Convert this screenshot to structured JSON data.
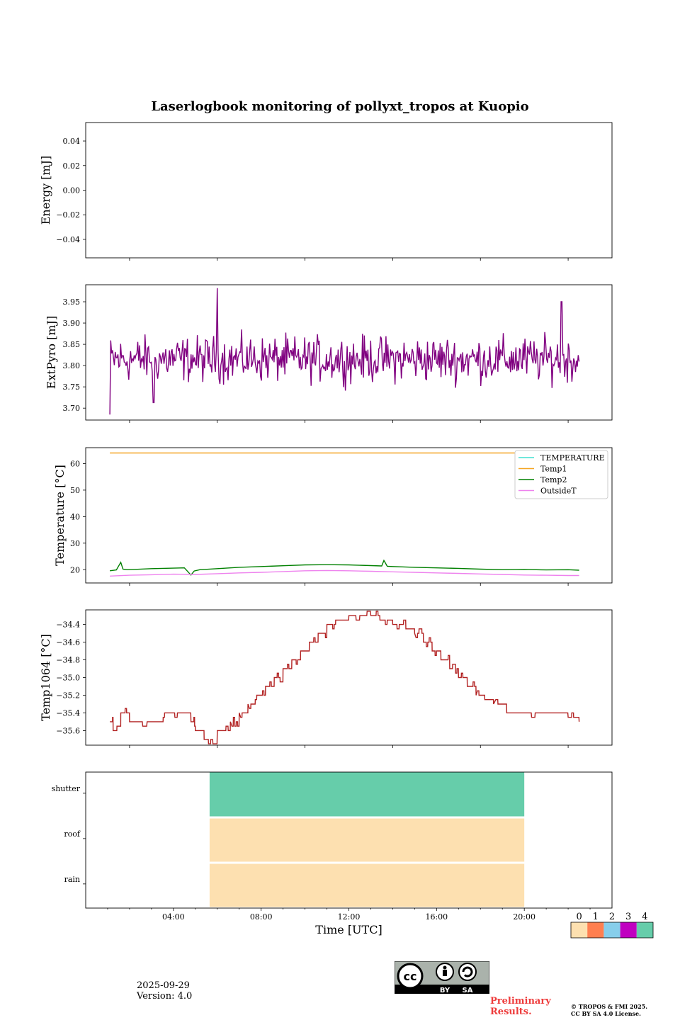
{
  "chart_data": {
    "title": "Laserlogbook monitoring of pollyxt_tropos at Kuopio",
    "xlabel": "Time [UTC]",
    "xlim": [
      0,
      24.0
    ],
    "shared_x_ticks": [
      2,
      6,
      10,
      14,
      18,
      22
    ],
    "panels": [
      {
        "type": "line",
        "ylabel": "Energy [mJ]",
        "ylim": [
          -0.055,
          0.055
        ],
        "yticks": [
          -0.04,
          -0.02,
          0.0,
          0.02,
          0.04
        ],
        "ytick_labels": [
          "−0.04",
          "−0.02",
          "0.00",
          "0.02",
          "0.04"
        ],
        "series": []
      },
      {
        "type": "line",
        "ylabel": "ExtPyro [mJ]",
        "ylim": [
          3.672,
          3.99
        ],
        "yticks": [
          3.7,
          3.75,
          3.8,
          3.85,
          3.9,
          3.95
        ],
        "ytick_labels": [
          "3.70",
          "3.75",
          "3.80",
          "3.85",
          "3.90",
          "3.95"
        ],
        "series": [
          {
            "name": "ExtPyro",
            "color": "#800080",
            "x_start": 1.1,
            "x_end": 22.5,
            "mean": 3.815,
            "noise": 0.04,
            "spikes": [
              [
                1.1,
                3.685
              ],
              [
                6.0,
                3.982
              ],
              [
                21.7,
                3.95
              ],
              [
                3.1,
                3.713
              ]
            ]
          }
        ]
      },
      {
        "type": "line",
        "ylabel": "Temperature [°C]",
        "ylim": [
          15,
          66
        ],
        "yticks": [
          20,
          30,
          40,
          50,
          60
        ],
        "ytick_labels": [
          "20",
          "30",
          "40",
          "50",
          "60"
        ],
        "legend": [
          "TEMPERATURE",
          "Temp1",
          "Temp2",
          "OutsideT"
        ],
        "legend_loc": "upper right",
        "series": [
          {
            "name": "TEMPERATURE",
            "color": "#40e0d0",
            "x": [],
            "values": []
          },
          {
            "name": "Temp1",
            "color": "#f5a623",
            "x": [
              1.1,
              22.5
            ],
            "values": [
              64,
              64
            ]
          },
          {
            "name": "Temp2",
            "color": "#008000",
            "x": [
              1.1,
              1.4,
              1.6,
              1.7,
              1.9,
              3.0,
              4.5,
              4.8,
              4.95,
              5.2,
              6.0,
              7.0,
              8.0,
              9.0,
              10.0,
              11.0,
              12.0,
              13.5,
              13.6,
              13.75,
              14.0,
              15.0,
              16.0,
              17.0,
              18.0,
              19.0,
              20.0,
              21.0,
              22.0,
              22.5
            ],
            "values": [
              19.6,
              19.9,
              22.8,
              20.2,
              20.0,
              20.4,
              20.7,
              18.0,
              19.5,
              20.0,
              20.4,
              20.9,
              21.2,
              21.5,
              21.8,
              21.9,
              21.8,
              21.4,
              23.5,
              21.3,
              21.2,
              20.9,
              20.7,
              20.5,
              20.2,
              20.0,
              20.1,
              19.9,
              20.0,
              19.8
            ]
          },
          {
            "name": "OutsideT",
            "color": "#ee82ee",
            "x": [
              1.1,
              2.0,
              3.0,
              4.0,
              5.0,
              6.0,
              7.0,
              8.0,
              9.0,
              10.0,
              11.0,
              12.0,
              13.0,
              14.0,
              15.0,
              16.0,
              17.0,
              18.0,
              19.0,
              20.0,
              21.0,
              22.0,
              22.5
            ],
            "values": [
              17.6,
              17.9,
              18.1,
              18.3,
              18.2,
              18.5,
              18.8,
              19.0,
              19.3,
              19.6,
              19.7,
              19.6,
              19.4,
              19.2,
              19.0,
              18.8,
              18.6,
              18.4,
              18.2,
              18.0,
              17.9,
              17.8,
              17.8
            ]
          }
        ]
      },
      {
        "type": "line",
        "ylabel": "Temp1064 [°C]",
        "ylim": [
          -35.765,
          -34.235
        ],
        "yticks": [
          -35.6,
          -35.4,
          -35.2,
          -35.0,
          -34.8,
          -34.6,
          -34.4
        ],
        "ytick_labels": [
          "−35.6",
          "−35.4",
          "−35.2",
          "−35.0",
          "−34.8",
          "−34.6",
          "−34.4"
        ],
        "series": [
          {
            "name": "Temp1064",
            "color": "#b22222",
            "x": [
              1.1,
              1.25,
              1.6,
              2.0,
              3.2,
              3.6,
              4.3,
              4.8,
              5.0,
              5.4,
              6.0,
              6.6,
              7.0,
              7.4,
              7.8,
              8.2,
              8.6,
              9.0,
              9.4,
              9.8,
              10.2,
              10.6,
              11.0,
              11.4,
              12.0,
              13.0,
              13.5,
              14.0,
              14.6,
              15.0,
              15.4,
              15.8,
              16.2,
              16.6,
              17.0,
              17.4,
              17.8,
              18.2,
              18.6,
              19.2,
              20.0,
              21.0,
              22.0,
              22.5
            ],
            "values": [
              -35.5,
              -35.6,
              -35.4,
              -35.5,
              -35.5,
              -35.4,
              -35.4,
              -35.5,
              -35.6,
              -35.7,
              -35.6,
              -35.5,
              -35.4,
              -35.3,
              -35.2,
              -35.1,
              -35.0,
              -34.9,
              -34.8,
              -34.7,
              -34.6,
              -34.5,
              -34.4,
              -34.35,
              -34.3,
              -34.3,
              -34.35,
              -34.4,
              -34.45,
              -34.5,
              -34.6,
              -34.7,
              -34.8,
              -34.9,
              -35.0,
              -35.1,
              -35.2,
              -35.25,
              -35.3,
              -35.4,
              -35.4,
              -35.4,
              -35.45,
              -35.5
            ]
          }
        ]
      },
      {
        "type": "heatmap",
        "rows": [
          "shutter",
          "roof",
          "rain"
        ],
        "x_tick_labels": [
          "04:00",
          "08:00",
          "12:00",
          "16:00",
          "20:00"
        ],
        "x_ticks": [
          4,
          8,
          12,
          16,
          20
        ],
        "xlim": [
          0,
          24.0
        ],
        "segments": [
          {
            "row": "shutter",
            "x0": 5.65,
            "x1": 20.0,
            "value": 4
          },
          {
            "row": "roof",
            "x0": 5.65,
            "x1": 20.0,
            "value": 0
          },
          {
            "row": "rain",
            "x0": 5.65,
            "x1": 20.0,
            "value": 0
          }
        ],
        "colorbar": {
          "labels": [
            "0",
            "1",
            "2",
            "3",
            "4"
          ],
          "colors": [
            "#fde0b0",
            "#ff7f50",
            "#87ceeb",
            "#c000c0",
            "#66cdaa"
          ]
        }
      }
    ]
  },
  "footer": {
    "date": "2025-09-29",
    "version": "Version: 4.0",
    "preliminary_line1": "Preliminary",
    "preliminary_line2": "Results.",
    "copyright_line1": "© TROPOS & FMI 2025.",
    "copyright_line2": "CC BY SA 4.0 License.",
    "license_badge": [
      "cc",
      "BY",
      "SA"
    ]
  }
}
